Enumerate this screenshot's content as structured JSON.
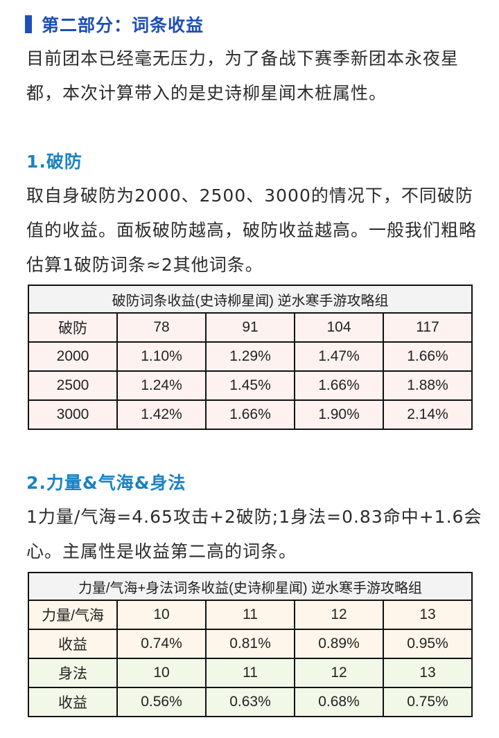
{
  "section": {
    "title": "第二部分：词条收益"
  },
  "intro": {
    "text": "目前团本已经毫无压力，为了备战下赛季新团本永夜星都，本次计算带入的是史诗柳星闻木桩属性。"
  },
  "part1": {
    "title": "1.破防",
    "text": "取自身破防为2000、2500、3000的情况下，不同破防值的收益。面板破防越高，破防收益越高。一般我们粗略估算1破防词条≈2其他词条。",
    "table": {
      "caption": "破防词条收益(史诗柳星闻) 逆水寒手游攻略组",
      "header": [
        "破防",
        "78",
        "91",
        "104",
        "117"
      ],
      "rows": [
        [
          "2000",
          "1.10%",
          "1.29%",
          "1.47%",
          "1.66%"
        ],
        [
          "2500",
          "1.24%",
          "1.45%",
          "1.66%",
          "1.88%"
        ],
        [
          "3000",
          "1.42%",
          "1.66%",
          "1.90%",
          "2.14%"
        ]
      ]
    }
  },
  "part2": {
    "title": "2.力量&气海&身法",
    "text": "1力量/气海=4.65攻击+2破防;1身法=0.83命中+1.6会心。主属性是收益第二高的词条。",
    "table": {
      "caption": "力量/气海+身法词条收益(史诗柳星闻) 逆水寒手游攻略组",
      "rows": [
        [
          "力量/气海",
          "10",
          "11",
          "12",
          "13"
        ],
        [
          "收益",
          "0.74%",
          "0.81%",
          "0.89%",
          "0.95%"
        ],
        [
          "身法",
          "10",
          "11",
          "12",
          "13"
        ],
        [
          "收益",
          "0.56%",
          "0.63%",
          "0.68%",
          "0.75%"
        ]
      ]
    }
  },
  "colors": {
    "accent": "#1d4fb8",
    "subtitle": "#1a82c4",
    "table1_fill": "#fdf2f0",
    "table2_warm": "#fef6ea",
    "table2_green": "#f1f8e8"
  }
}
